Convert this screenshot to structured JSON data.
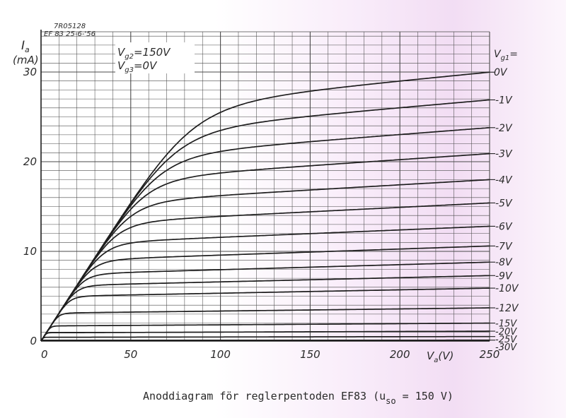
{
  "chart_data": {
    "type": "line",
    "stamp_line1": "7R05128",
    "stamp_line2": "EF 83  25-6-'56",
    "ylabel_symbol": "I",
    "ylabel_sub": "a",
    "ylabel_unit": "(mA)",
    "xlabel_symbol": "V",
    "xlabel_sub": "a",
    "xlabel_unit": "(V)",
    "condition_vg2": "V",
    "condition_vg2_sub": "g2",
    "condition_vg2_value": "=150V",
    "condition_vg3": "V",
    "condition_vg3_sub": "g3",
    "condition_vg3_value": "=0V",
    "legend_title": "V",
    "legend_title_sub": "g1",
    "legend_title_eq": "=",
    "xlim": [
      0,
      250
    ],
    "ylim": [
      0,
      33
    ],
    "x_ticks": [
      0,
      50,
      100,
      150,
      200,
      250
    ],
    "x_tick_labels": [
      "0",
      "50",
      "100",
      "150",
      "200",
      "250"
    ],
    "y_ticks": [
      0,
      10,
      20,
      30
    ],
    "y_tick_labels": [
      "0",
      "10",
      "20",
      "30"
    ],
    "grid": true,
    "series": [
      {
        "name": "0V",
        "end_value": 30.0
      },
      {
        "name": "-1V",
        "end_value": 26.9
      },
      {
        "name": "-2V",
        "end_value": 23.8
      },
      {
        "name": "-3V",
        "end_value": 20.9
      },
      {
        "name": "-4V",
        "end_value": 18.0
      },
      {
        "name": "-5V",
        "end_value": 15.4
      },
      {
        "name": "-6V",
        "end_value": 12.8
      },
      {
        "name": "-7V",
        "end_value": 10.6
      },
      {
        "name": "-8V",
        "end_value": 8.8
      },
      {
        "name": "-9V",
        "end_value": 7.3
      },
      {
        "name": "-10V",
        "end_value": 5.9
      },
      {
        "name": "-12V",
        "end_value": 3.7
      },
      {
        "name": "-15V",
        "end_value": 2.0
      },
      {
        "name": "-20V",
        "end_value": 1.1
      },
      {
        "name": "-25V",
        "end_value": 0.5
      },
      {
        "name": "-30V",
        "end_value": 0.1
      }
    ]
  },
  "caption": {
    "text": "Anoddiagram för reglerpentoden EF83 (u",
    "sub": "so",
    "tail": " = 150 V)"
  }
}
